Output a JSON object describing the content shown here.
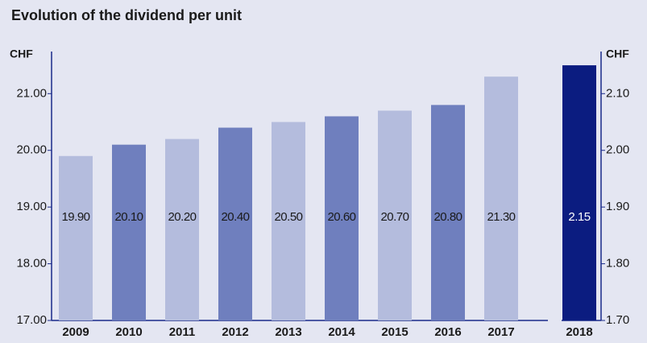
{
  "chart_data": {
    "type": "bar",
    "title": "Evolution of the dividend per unit",
    "ylabel": "CHF",
    "y2label": "CHF",
    "categories": [
      "2009",
      "2010",
      "2011",
      "2012",
      "2013",
      "2014",
      "2015",
      "2016",
      "2017",
      "2018"
    ],
    "series": [
      {
        "colors": [
          "#b4bcdd",
          "#6f7fbe",
          "#b4bcdd",
          "#6f7fbe",
          "#b4bcdd",
          "#6f7fbe",
          "#b4bcdd",
          "#6f7fbe",
          "#b4bcdd",
          null
        ],
        "values": [
          19.9,
          20.1,
          20.2,
          20.4,
          20.5,
          20.6,
          20.7,
          20.8,
          21.3,
          null
        ],
        "value_labels": [
          "19.90",
          "20.10",
          "20.20",
          "20.40",
          "20.50",
          "20.60",
          "20.70",
          "20.80",
          "21.30",
          null
        ]
      },
      {
        "axis": "y2",
        "color": "#0b1c80",
        "values": [
          null,
          null,
          null,
          null,
          null,
          null,
          null,
          null,
          null,
          2.15
        ],
        "value_labels": [
          null,
          null,
          null,
          null,
          null,
          null,
          null,
          null,
          null,
          "2.15"
        ]
      }
    ],
    "ylim": [
      17,
      21.7
    ],
    "yticks": [
      {
        "value": 17,
        "label": "17.00"
      },
      {
        "value": 18,
        "label": "18.00"
      },
      {
        "value": 19,
        "label": "19.00"
      },
      {
        "value": 20,
        "label": "20.00"
      },
      {
        "value": 21,
        "label": "21.00"
      }
    ],
    "y2lim": [
      1.7,
      2.17
    ],
    "y2ticks": [
      {
        "value": 1.7,
        "label": "1.70"
      },
      {
        "value": 1.8,
        "label": "1.80"
      },
      {
        "value": 1.9,
        "label": "1.90"
      },
      {
        "value": 2.0,
        "label": "2.00"
      },
      {
        "value": 2.1,
        "label": "2.10"
      }
    ]
  }
}
